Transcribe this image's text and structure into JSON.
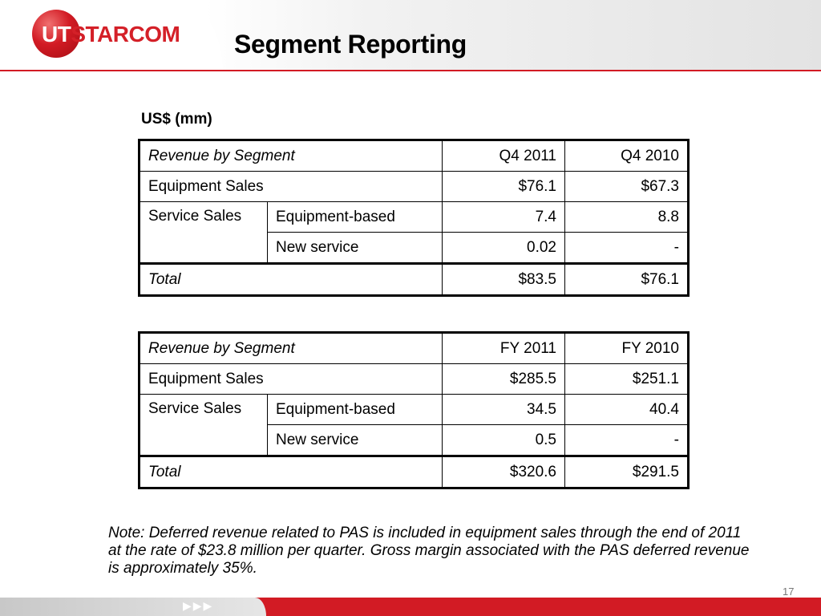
{
  "header": {
    "logo_text_a": "UT",
    "logo_text_b": "STARCOM",
    "title": "Segment Reporting"
  },
  "unit_label": "US$ (mm)",
  "quarterly_table": {
    "header": {
      "segment": "Revenue by Segment",
      "col1": "Q4 2011",
      "col2": "Q4 2010"
    },
    "equipment_sales": {
      "label": "Equipment Sales",
      "col1": "$76.1",
      "col2": "$67.3"
    },
    "service_sales": {
      "label": "Service Sales",
      "equipment_based": {
        "label": "Equipment-based",
        "col1": "7.4",
        "col2": "8.8"
      },
      "new_service": {
        "label": "New service",
        "col1": "0.02",
        "col2": "-"
      }
    },
    "total": {
      "label": "Total",
      "col1": "$83.5",
      "col2": "$76.1"
    }
  },
  "annual_table": {
    "header": {
      "segment": "Revenue by Segment",
      "col1": "FY 2011",
      "col2": "FY 2010"
    },
    "equipment_sales": {
      "label": "Equipment Sales",
      "col1": "$285.5",
      "col2": "$251.1"
    },
    "service_sales": {
      "label": "Service Sales",
      "equipment_based": {
        "label": "Equipment-based",
        "col1": "34.5",
        "col2": "40.4"
      },
      "new_service": {
        "label": "New service",
        "col1": "0.5",
        "col2": "-"
      }
    },
    "total": {
      "label": "Total",
      "col1": "$320.6",
      "col2": "$291.5"
    }
  },
  "note": "Note: Deferred revenue related to PAS is included in equipment sales through the end of 2011 at the rate of $23.8 million per quarter.  Gross margin associated with the PAS deferred revenue is approximately 35%.",
  "footer": {
    "page_number": "17"
  },
  "colors": {
    "brand_red": "#d21b24",
    "header_grey": "#e3e3e3"
  }
}
